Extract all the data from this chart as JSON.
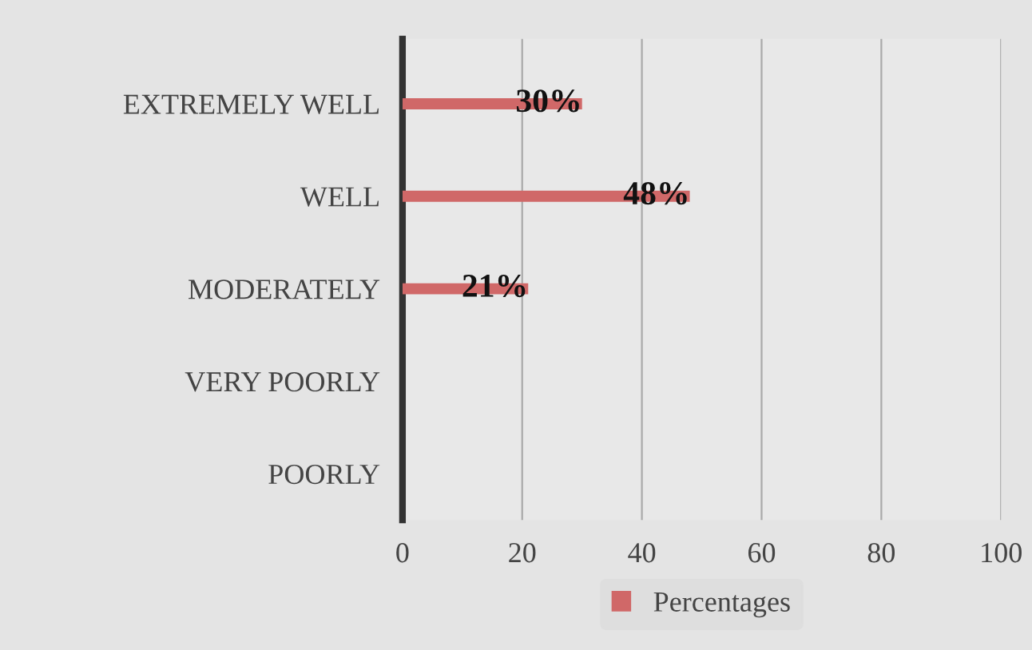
{
  "chart_data": {
    "type": "bar",
    "orientation": "horizontal",
    "categories": [
      "EXTREMELY WELL",
      "WELL",
      "MODERATELY",
      "VERY POORLY",
      "POORLY"
    ],
    "series": [
      {
        "name": "Percentages",
        "color": "#d06868",
        "values": [
          30,
          48,
          21,
          null,
          null
        ],
        "value_labels": [
          "30%",
          "48%",
          "21%",
          null,
          null
        ]
      }
    ],
    "xlim": [
      0,
      100
    ],
    "xticks": [
      0,
      20,
      40,
      60,
      80,
      100
    ],
    "grid": "x",
    "legend": "bottom"
  }
}
